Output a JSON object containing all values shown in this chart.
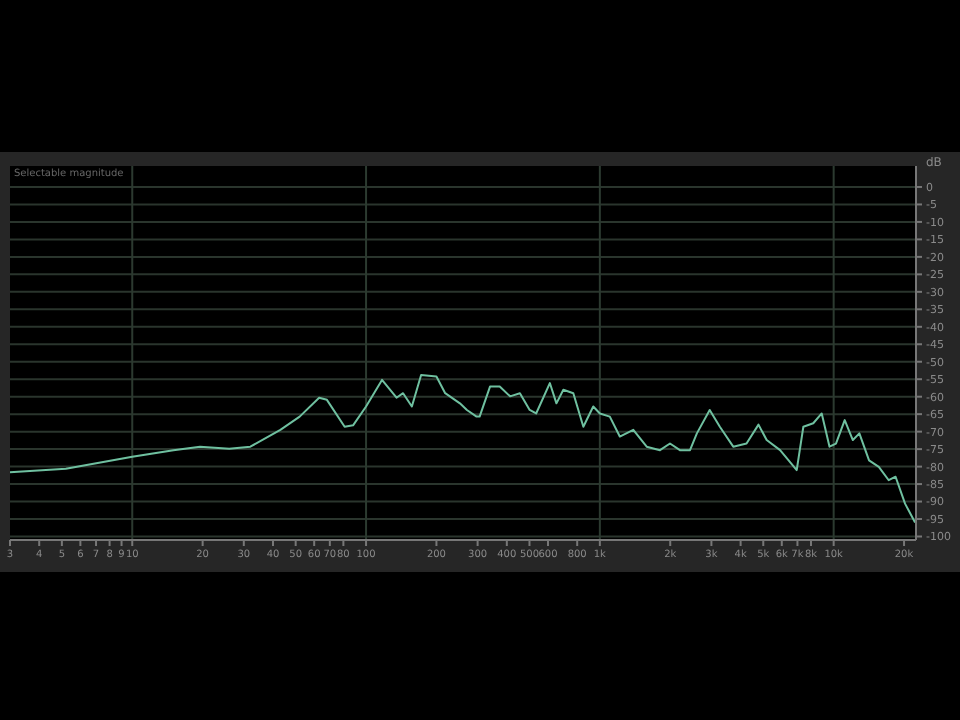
{
  "chart_data": {
    "type": "line",
    "ylabel": "dB",
    "annotations": [
      "Selectable magnitude"
    ],
    "x": [
      3,
      5.2,
      10,
      15,
      19.5,
      26,
      32,
      43,
      52,
      63,
      68,
      81,
      88,
      100,
      117,
      135,
      144,
      157,
      172,
      200,
      218,
      252,
      270,
      297,
      306,
      339,
      373,
      413,
      455,
      501,
      534,
      611,
      652,
      698,
      770,
      850,
      937,
      1000,
      1103,
      1217,
      1390,
      1586,
      1808,
      1995,
      2200,
      2430,
      2600,
      2950,
      3260,
      3720,
      4240,
      4770,
      5170,
      5900,
      6950,
      7420,
      8180,
      8890,
      9600,
      10230,
      11150,
      12080,
      12880,
      14170,
      15600,
      17200,
      18400,
      20200,
      22300
    ],
    "series": [
      {
        "color": "#6fc0a0",
        "values": [
          -81.6,
          -80.6,
          -77.2,
          -75.3,
          -74.3,
          -74.9,
          -74.3,
          -69.5,
          -65.7,
          -60.3,
          -60.9,
          -68.6,
          -68.2,
          -62.8,
          -55.2,
          -60.3,
          -59,
          -62.8,
          -53.8,
          -54.2,
          -59,
          -61.9,
          -63.8,
          -65.7,
          -65.7,
          -57.1,
          -57.1,
          -59.9,
          -59,
          -63.8,
          -64.8,
          -56.1,
          -61.9,
          -58,
          -59,
          -68.6,
          -62.8,
          -64.8,
          -65.7,
          -71.4,
          -69.5,
          -74.3,
          -75.3,
          -73.4,
          -75.3,
          -75.3,
          -70.5,
          -63.8,
          -68.6,
          -74.3,
          -73.4,
          -68,
          -72.4,
          -75.3,
          -81,
          -68.6,
          -67.6,
          -64.8,
          -74.3,
          -73.4,
          -66.7,
          -72.4,
          -70.5,
          -78.2,
          -80.1,
          -83.9,
          -82.9,
          -90.6,
          -96
        ]
      }
    ],
    "log": "x",
    "xlim": [
      3,
      22500
    ],
    "xticks": [
      3,
      4,
      5,
      6,
      7,
      8,
      9,
      10,
      20,
      30,
      40,
      50,
      60,
      70,
      80,
      100,
      200,
      300,
      400,
      500,
      600,
      800,
      {
        "value": 1000,
        "label": "1k"
      },
      {
        "value": 2000,
        "label": "2k"
      },
      {
        "value": 3000,
        "label": "3k"
      },
      {
        "value": 4000,
        "label": "4k"
      },
      {
        "value": 5000,
        "label": "5k"
      },
      {
        "value": 6000,
        "label": "6k"
      },
      {
        "value": 7000,
        "label": "7k"
      },
      {
        "value": 8000,
        "label": "8k"
      },
      {
        "value": 10000,
        "label": "10k"
      },
      {
        "value": 20000,
        "label": "20k"
      }
    ],
    "ylim": [
      -101,
      6
    ],
    "yticks": [
      0,
      -5,
      -10,
      -15,
      -20,
      -25,
      -30,
      -35,
      -40,
      -45,
      -50,
      -55,
      -60,
      -65,
      -70,
      -75,
      -80,
      -85,
      -90,
      -95,
      -100
    ],
    "grid": "y",
    "ref_lines": [
      {
        "axis": "x",
        "value": 10,
        "color": "#2c3a30"
      },
      {
        "axis": "x",
        "value": 100,
        "color": "#2c3a30"
      },
      {
        "axis": "x",
        "value": 1000,
        "color": "#2c3a30"
      },
      {
        "axis": "x",
        "value": 10000,
        "color": "#2c3a30"
      }
    ],
    "marker": "none",
    "legend": false
  }
}
